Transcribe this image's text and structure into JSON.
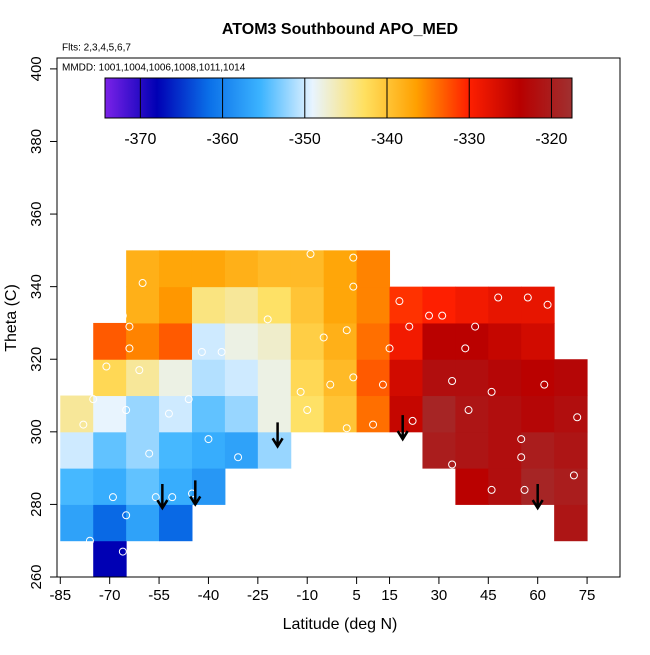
{
  "chart_data": {
    "type": "heatmap",
    "title": "ATOM3 Southbound APO_MED",
    "notes": [
      "Flts: 2,3,4,5,6,7",
      "MMDD: 1001,1004,1006,1008,1011,1014"
    ],
    "xlabel": "Latitude (deg N)",
    "ylabel": "Theta (C)",
    "xlim": [
      -86,
      85
    ],
    "ylim": [
      260,
      403
    ],
    "xticks": [
      -85,
      -70,
      -55,
      -40,
      -25,
      -10,
      5,
      15,
      30,
      45,
      60,
      75
    ],
    "yticks": [
      260,
      280,
      300,
      320,
      340,
      360,
      380,
      400
    ],
    "x": [
      -80,
      -70,
      -60,
      -50,
      -40,
      -30,
      -20,
      -10,
      0,
      10,
      20,
      30,
      40,
      50,
      60,
      70
    ],
    "y": [
      265,
      275,
      285,
      295,
      305,
      315,
      325,
      335,
      345
    ],
    "z": [
      [
        null,
        -368,
        null,
        null,
        null,
        null,
        null,
        null,
        null,
        null,
        null,
        null,
        null,
        null,
        null,
        null
      ],
      [
        -357,
        -362,
        -357,
        -362,
        null,
        null,
        null,
        null,
        null,
        null,
        null,
        null,
        null,
        null,
        null,
        -321
      ],
      [
        -355,
        -356,
        -354,
        -356,
        -358,
        null,
        null,
        null,
        null,
        null,
        null,
        null,
        -324,
        -322,
        -319,
        -320
      ],
      [
        -350,
        -354,
        -352,
        -355,
        -356,
        -357,
        -352,
        null,
        null,
        null,
        null,
        -320,
        -321,
        -322,
        -320,
        -321
      ],
      [
        -345,
        -349,
        -352,
        -350,
        -354,
        -352,
        -348,
        -343,
        -340,
        -334,
        -325,
        -319,
        -321,
        -322,
        -323,
        -322
      ],
      [
        null,
        -342,
        -345,
        -348,
        -351,
        -350,
        -348,
        -342,
        -339,
        -333,
        -326,
        -322,
        -322,
        -323,
        -324,
        -323
      ],
      [
        null,
        -333,
        -335,
        -333,
        -350,
        -348,
        -347,
        -341,
        -338,
        -334,
        -329,
        -324,
        -324,
        -325,
        -326,
        null
      ],
      [
        null,
        null,
        -338,
        -336,
        -344,
        -345,
        -343,
        -340,
        -337,
        -335,
        -331,
        -330,
        -329,
        -328,
        -328,
        null
      ],
      [
        null,
        null,
        -338,
        -337,
        -337,
        -338,
        -339,
        -339,
        -337,
        -335,
        null,
        null,
        null,
        null,
        null,
        null
      ]
    ],
    "clim": [
      -374.3,
      -317.5
    ],
    "colorbar_ticks": [
      -370,
      -360,
      -350,
      -340,
      -330,
      -320
    ],
    "colorscale": [
      "#7b22e8",
      "#0000b4",
      "#0a6fe8",
      "#3cb4ff",
      "#e8f4ff",
      "#ffe060",
      "#ffa000",
      "#ff2000",
      "#b80000",
      "#a03030"
    ],
    "points": {
      "color": "#ffffff",
      "x": [
        4,
        -9,
        4,
        18,
        18,
        21,
        27,
        31,
        41,
        48,
        57,
        63,
        67,
        2,
        -5,
        38,
        15,
        4,
        -3,
        13,
        34,
        62,
        46,
        -10,
        2,
        10,
        22,
        39,
        34,
        55,
        55,
        46,
        56,
        72,
        71,
        -64,
        -60,
        -66,
        -64,
        -71,
        -61,
        -42,
        -36,
        -46,
        -52,
        -40,
        -65,
        -75,
        -78,
        -58,
        -69,
        -65,
        -51,
        -45,
        -56,
        -76,
        -66,
        -31,
        -22,
        -12
      ],
      "y": [
        348,
        349,
        340,
        342,
        336,
        329,
        332,
        332,
        329,
        337,
        337,
        335,
        334,
        328,
        326,
        323,
        323,
        315,
        313,
        313,
        314,
        313,
        311,
        306,
        301,
        302,
        303,
        306,
        291,
        298,
        293,
        284,
        284,
        304,
        288,
        329,
        341,
        332,
        323,
        318,
        317,
        322,
        322,
        309,
        305,
        298,
        306,
        309,
        302,
        294,
        282,
        277,
        282,
        283,
        282,
        270,
        267,
        293,
        331,
        311
      ]
    },
    "arrows": {
      "color": "#000000",
      "x": [
        -54,
        -44,
        -19,
        19,
        60
      ],
      "y": [
        279,
        280,
        296,
        298,
        279
      ]
    }
  }
}
